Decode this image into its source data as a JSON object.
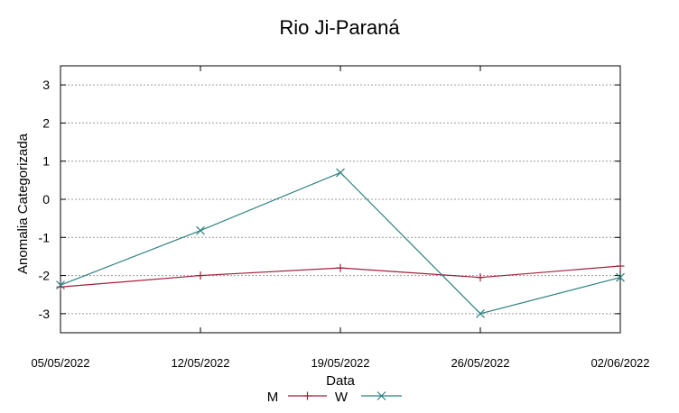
{
  "chart_data": {
    "type": "line",
    "title": "Rio Ji-Paraná",
    "xlabel": "Data",
    "ylabel": "Anomalia Categorizada",
    "categories": [
      "05/05/2022",
      "12/05/2022",
      "19/05/2022",
      "26/05/2022",
      "02/06/2022"
    ],
    "ylim": [
      -3.5,
      3.5
    ],
    "yticks": [
      -3,
      -2,
      -1,
      0,
      1,
      2,
      3
    ],
    "grid": true,
    "legend_position": "bottom-center",
    "series": [
      {
        "name": "M",
        "values": [
          -2.3,
          -2.0,
          -1.8,
          -2.05,
          -1.75
        ],
        "color": "#a0203a",
        "marker": "plus"
      },
      {
        "name": "W",
        "values": [
          -2.25,
          -0.82,
          0.7,
          -3.0,
          -2.05
        ],
        "color": "#2e8080",
        "marker": "cross"
      }
    ]
  }
}
